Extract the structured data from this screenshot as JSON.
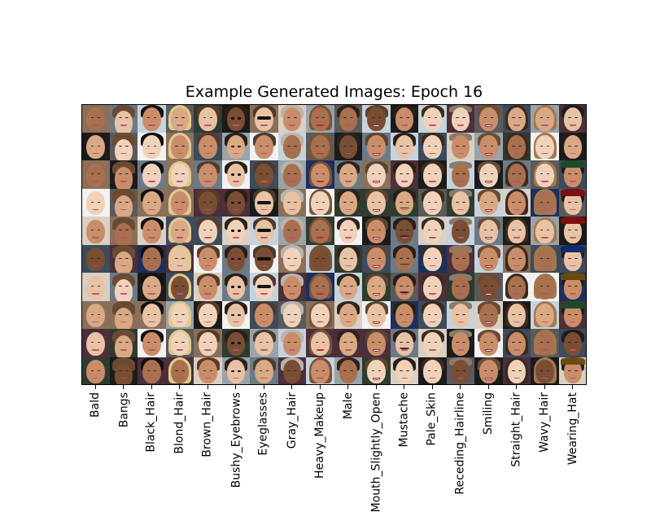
{
  "chart_data": {
    "type": "image_grid",
    "title": "Example Generated Images: Epoch 16",
    "rows": 10,
    "columns": 18,
    "tick_labels": [
      "Bald",
      "Bangs",
      "Black_Hair",
      "Blond_Hair",
      "Brown_Hair",
      "Bushy_Eyebrows",
      "Eyeglasses",
      "Gray_Hair",
      "Heavy_Makeup",
      "Male",
      "Mouth_Slightly_Open",
      "Mustache",
      "Pale_Skin",
      "Receding_Hairline",
      "Smiling",
      "Straight_Hair",
      "Wavy_Hair",
      "Wearing_Hat"
    ],
    "grid": false,
    "legend": "none"
  },
  "palette": {
    "skin": [
      "#e8c2a4",
      "#d9a884",
      "#c98d6a",
      "#a8704f",
      "#7a4e35",
      "#f0d2bb"
    ],
    "hair": {
      "Bald": "#c9a98e",
      "Bangs": "#6b4a33",
      "Black_Hair": "#141010",
      "Blond_Hair": "#e0c98f",
      "Brown_Hair": "#5a3a24",
      "Bushy_Eyebrows": "#2b1e16",
      "Eyeglasses": "#4a3a2e",
      "Gray_Hair": "#b9b4ac",
      "Heavy_Makeup": "#7a5338",
      "Male": "#2e231b",
      "Mouth_Slightly_Open": "#5b4331",
      "Mustache": "#2a1f18",
      "Pale_Skin": "#3b2a20",
      "Receding_Hairline": "#8a7a6a",
      "Smiling": "#6a4c36",
      "Straight_Hair": "#3a2a1f",
      "Wavy_Hair": "#a3774f",
      "Wearing_Hat": "#1d1d1d"
    },
    "backgrounds": [
      "#f2f2f2",
      "#1b1b1b",
      "#6b7a86",
      "#3d4b5c",
      "#c7d3dc",
      "#8a6f5a",
      "#2f3b2f",
      "#d9cfc2",
      "#4b2f3a",
      "#1e2f5c",
      "#9aa3a8",
      "#5a5a5a"
    ],
    "hat_colors": [
      "#7a1010",
      "#102a6a",
      "#1f4a2a",
      "#2b2b2b",
      "#6a4a10"
    ]
  }
}
